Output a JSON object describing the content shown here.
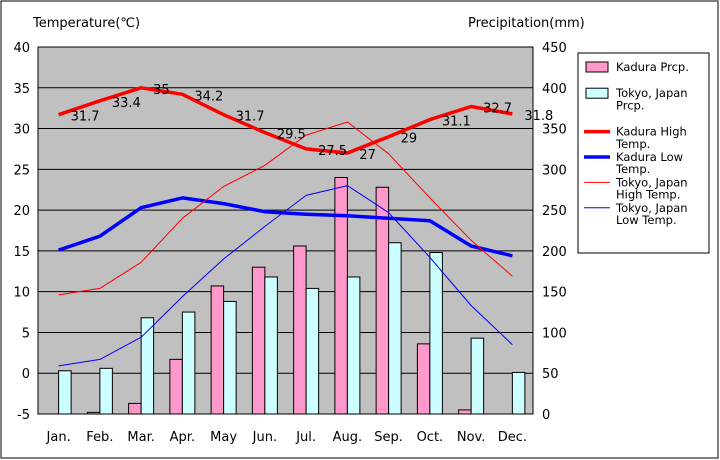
{
  "chart_data": {
    "type": "bar",
    "left_axis_title": "Temperature(℃)",
    "right_axis_title": "Precipitation(mm)",
    "categories": [
      "Jan.",
      "Feb.",
      "Mar.",
      "Apr.",
      "May",
      "Jun.",
      "Jul.",
      "Aug.",
      "Sep.",
      "Oct.",
      "Nov.",
      "Dec."
    ],
    "left_axis": {
      "min": -5,
      "max": 40,
      "step": 5,
      "ticks": [
        "-5",
        "0",
        "5",
        "10",
        "15",
        "20",
        "25",
        "30",
        "35",
        "40"
      ]
    },
    "right_axis": {
      "min": 0,
      "max": 450,
      "step": 50,
      "ticks": [
        "0",
        "50",
        "100",
        "150",
        "200",
        "250",
        "300",
        "350",
        "400",
        "450"
      ]
    },
    "grid": true,
    "legend_position": "right",
    "bar_series": [
      {
        "name": "Kadura Prcp.",
        "color": "#ff99cc",
        "values": [
          0,
          2,
          13,
          67,
          157,
          180,
          206,
          290,
          278,
          86,
          5,
          0
        ]
      },
      {
        "name": "Tokyo, Japan Prcp.",
        "color": "#ccffff",
        "values": [
          53,
          56,
          118,
          125,
          138,
          168,
          154,
          168,
          210,
          198,
          93,
          51
        ]
      }
    ],
    "line_series": [
      {
        "name": "Kadura High Temp.",
        "color": "#ff0000",
        "width": 3.5,
        "values": [
          31.7,
          33.4,
          35,
          34.2,
          31.7,
          29.5,
          27.5,
          27,
          29,
          31.1,
          32.7,
          31.8
        ],
        "labels": [
          "31.7",
          "33.4",
          "35",
          "34.2",
          "31.7",
          "29.5",
          "27.5",
          "27",
          "29",
          "31.1",
          "32.7",
          "31.8"
        ]
      },
      {
        "name": "Kadura Low Temp.",
        "color": "#0000ff",
        "width": 3.5,
        "values": [
          15.1,
          16.8,
          20.3,
          21.5,
          20.8,
          19.8,
          19.5,
          19.3,
          19.0,
          18.7,
          15.6,
          14.4
        ]
      },
      {
        "name": "Tokyo, Japan High Temp.",
        "color": "#ff0000",
        "width": 1,
        "values": [
          9.6,
          10.4,
          13.6,
          19.0,
          22.9,
          25.5,
          29.2,
          30.8,
          26.9,
          21.5,
          16.3,
          11.9
        ]
      },
      {
        "name": "Tokyo, Japan Low Temp.",
        "color": "#0000ff",
        "width": 1,
        "values": [
          0.9,
          1.7,
          4.4,
          9.4,
          14.0,
          18.0,
          21.8,
          23.0,
          19.7,
          14.2,
          8.3,
          3.5
        ]
      }
    ]
  }
}
